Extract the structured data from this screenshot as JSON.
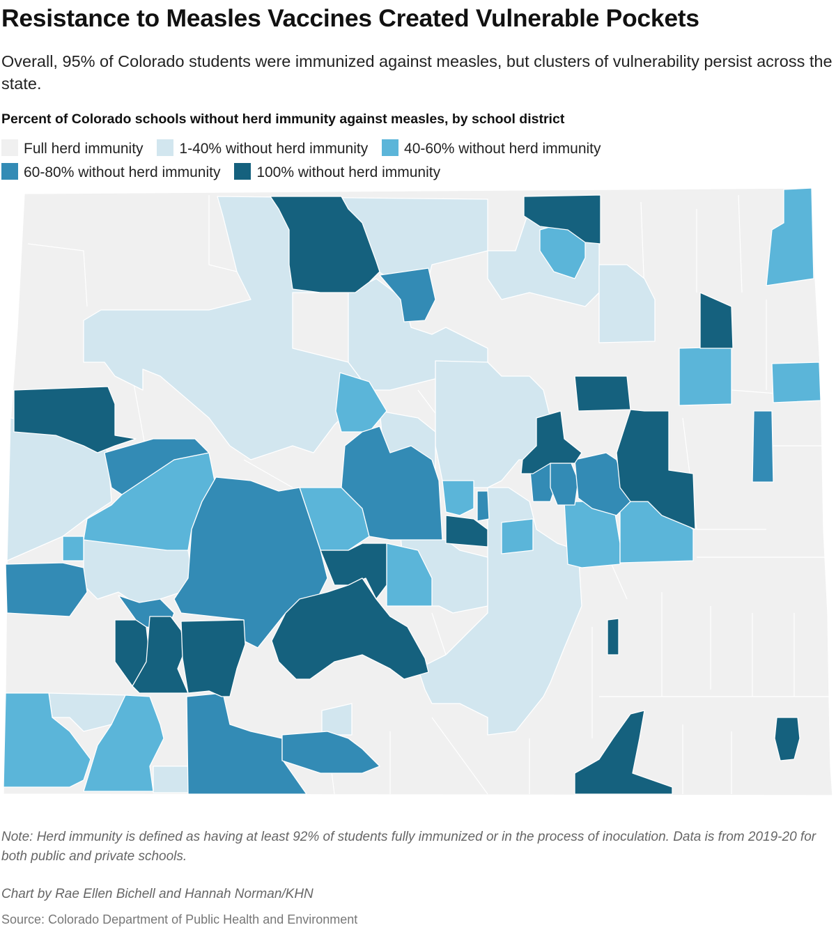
{
  "title": "Resistance to Measles Vaccines Created Vulnerable Pockets",
  "subtitle": "Overall, 95% of Colorado students were immunized against measles, but clusters of vulnerability persist across the state.",
  "map_heading": "Percent of Colorado schools without herd immunity against measles, by school district",
  "legend": [
    {
      "label": "Full herd immunity",
      "color": "#f0f0f0"
    },
    {
      "label": "1-40% without herd immunity",
      "color": "#d2e6ef"
    },
    {
      "label": "40-60% without herd immunity",
      "color": "#5bb5d9"
    },
    {
      "label": "60-80% without herd immunity",
      "color": "#338bb5"
    },
    {
      "label": "100% without herd immunity",
      "color": "#15617e"
    }
  ],
  "note": "Note: Herd immunity is defined as having at least 92% of students fully immunized or in the process of inoculation. Data is from 2019-20 for both public and private schools.",
  "credit": "Chart by Rae Ellen Bichell and Hannah Norman/KHN",
  "source": "Source: Colorado Department of Public Health and Environment"
}
